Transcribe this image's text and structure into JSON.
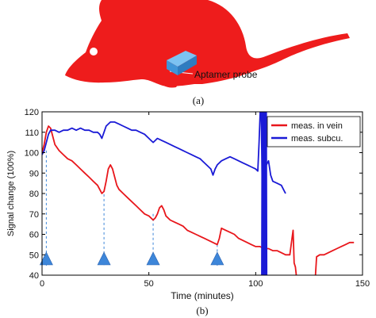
{
  "panel_a": {
    "probe_label": "Aptamer probe",
    "caption": "(a)",
    "mouse_color": "#ee1c1c",
    "probe_color": "#4aa3e6",
    "icon": "mouse-silhouette"
  },
  "panel_b": {
    "caption": "(b)"
  },
  "chart_data": {
    "type": "line",
    "xlabel": "Time (minutes)",
    "ylabel": "Signal change (100%)",
    "xlim": [
      0,
      150
    ],
    "ylim": [
      40,
      120
    ],
    "xticks": [
      0,
      50,
      100,
      150
    ],
    "yticks": [
      40,
      50,
      60,
      70,
      80,
      90,
      100,
      110,
      120
    ],
    "grid": false,
    "legend_position": "top-right",
    "series": [
      {
        "name": "meas. in vein",
        "color": "#e8161b",
        "segments": [
          [
            [
              0,
              100
            ],
            [
              1,
              104
            ],
            [
              2,
              110
            ],
            [
              3,
              113
            ],
            [
              4,
              112
            ],
            [
              5,
              108
            ],
            [
              6,
              104
            ],
            [
              8,
              101
            ],
            [
              10,
              99
            ],
            [
              12,
              97
            ],
            [
              14,
              96
            ],
            [
              16,
              94
            ],
            [
              18,
              92
            ],
            [
              20,
              90
            ],
            [
              22,
              88
            ],
            [
              24,
              86
            ],
            [
              26,
              84
            ],
            [
              27,
              82
            ],
            [
              28,
              80
            ],
            [
              29,
              81
            ],
            [
              30,
              86
            ],
            [
              31,
              92
            ],
            [
              32,
              94
            ],
            [
              33,
              92
            ],
            [
              34,
              88
            ],
            [
              35,
              84
            ],
            [
              36,
              82
            ],
            [
              38,
              80
            ],
            [
              40,
              78
            ],
            [
              42,
              76
            ],
            [
              44,
              74
            ],
            [
              46,
              72
            ],
            [
              48,
              70
            ],
            [
              50,
              69
            ],
            [
              52,
              67
            ],
            [
              53,
              68
            ],
            [
              54,
              70
            ],
            [
              55,
              73
            ],
            [
              56,
              74
            ],
            [
              57,
              72
            ],
            [
              58,
              69
            ],
            [
              60,
              67
            ],
            [
              62,
              66
            ],
            [
              64,
              65
            ],
            [
              66,
              64
            ],
            [
              68,
              62
            ],
            [
              70,
              61
            ],
            [
              72,
              60
            ],
            [
              74,
              59
            ],
            [
              76,
              58
            ],
            [
              78,
              57
            ],
            [
              80,
              56
            ],
            [
              82,
              55
            ],
            [
              83,
              58
            ],
            [
              84,
              63
            ],
            [
              86,
              62
            ],
            [
              88,
              61
            ],
            [
              90,
              60
            ],
            [
              92,
              58
            ],
            [
              94,
              57
            ],
            [
              96,
              56
            ],
            [
              98,
              55
            ],
            [
              100,
              54
            ],
            [
              102,
              54
            ],
            [
              104,
              53
            ],
            [
              106,
              53
            ],
            [
              108,
              52
            ],
            [
              110,
              52
            ],
            [
              112,
              51
            ],
            [
              114,
              50
            ],
            [
              116,
              50
            ],
            [
              117,
              58
            ],
            [
              117.5,
              62
            ],
            [
              118,
              46
            ],
            [
              118.6,
              44
            ],
            [
              119,
              40
            ]
          ],
          [
            [
              128,
              40
            ],
            [
              128.5,
              49
            ],
            [
              130,
              50
            ],
            [
              132,
              50
            ],
            [
              134,
              51
            ],
            [
              136,
              52
            ],
            [
              138,
              53
            ],
            [
              140,
              54
            ],
            [
              142,
              55
            ],
            [
              144,
              56
            ],
            [
              146,
              56
            ]
          ]
        ]
      },
      {
        "name": "meas. subcu.",
        "color": "#1a1ad6",
        "segments": [
          [
            [
              0,
              99
            ],
            [
              1,
              101
            ],
            [
              2,
              105
            ],
            [
              3,
              109
            ],
            [
              4,
              111
            ],
            [
              6,
              111
            ],
            [
              8,
              110
            ],
            [
              10,
              111
            ],
            [
              12,
              111
            ],
            [
              14,
              112
            ],
            [
              16,
              111
            ],
            [
              18,
              112
            ],
            [
              20,
              111
            ],
            [
              22,
              111
            ],
            [
              24,
              110
            ],
            [
              26,
              110
            ],
            [
              27,
              109
            ],
            [
              28,
              107
            ],
            [
              29,
              110
            ],
            [
              30,
              113
            ],
            [
              32,
              115
            ],
            [
              34,
              115
            ],
            [
              36,
              114
            ],
            [
              38,
              113
            ],
            [
              40,
              112
            ],
            [
              42,
              111
            ],
            [
              44,
              111
            ],
            [
              46,
              110
            ],
            [
              48,
              109
            ],
            [
              50,
              107
            ],
            [
              51,
              106
            ],
            [
              52,
              105
            ],
            [
              54,
              107
            ],
            [
              56,
              106
            ],
            [
              58,
              105
            ],
            [
              60,
              104
            ],
            [
              62,
              103
            ],
            [
              64,
              102
            ],
            [
              66,
              101
            ],
            [
              68,
              100
            ],
            [
              70,
              99
            ],
            [
              72,
              98
            ],
            [
              74,
              97
            ],
            [
              76,
              95
            ],
            [
              78,
              93
            ],
            [
              79,
              92
            ],
            [
              80,
              89
            ],
            [
              81,
              92
            ],
            [
              82,
              94
            ],
            [
              84,
              96
            ],
            [
              86,
              97
            ],
            [
              88,
              98
            ],
            [
              90,
              97
            ],
            [
              92,
              96
            ],
            [
              94,
              95
            ],
            [
              96,
              94
            ],
            [
              98,
              93
            ],
            [
              100,
              92
            ],
            [
              101,
              91
            ],
            [
              101.6,
              105
            ],
            [
              102.1,
              120
            ]
          ],
          [
            [
              102.6,
              120
            ],
            [
              103,
              89
            ],
            [
              104,
              91
            ],
            [
              105,
              94
            ],
            [
              106,
              96
            ],
            [
              107,
              89
            ],
            [
              108,
              86
            ],
            [
              110,
              85
            ],
            [
              112,
              84
            ],
            [
              113,
              82
            ],
            [
              114,
              80
            ]
          ]
        ]
      },
      {
        "name": "",
        "color": "#1a1ad6",
        "segments": [
          [
            [
              102.8,
              40
            ],
            [
              103,
              120
            ],
            [
              103.2,
              40
            ],
            [
              103.4,
              120
            ],
            [
              103.6,
              40
            ],
            [
              103.8,
              120
            ],
            [
              104,
              40
            ],
            [
              104.2,
              120
            ],
            [
              104.4,
              40
            ],
            [
              104.6,
              120
            ],
            [
              104.8,
              40
            ],
            [
              105,
              120
            ],
            [
              105.2,
              40
            ]
          ]
        ]
      }
    ],
    "markers": [
      {
        "x": 2,
        "y_top": 101
      },
      {
        "x": 29,
        "y_top": 82
      },
      {
        "x": 52,
        "y_top": 70
      },
      {
        "x": 82,
        "y_top": 55
      }
    ],
    "marker_color": "#3d86d9"
  }
}
